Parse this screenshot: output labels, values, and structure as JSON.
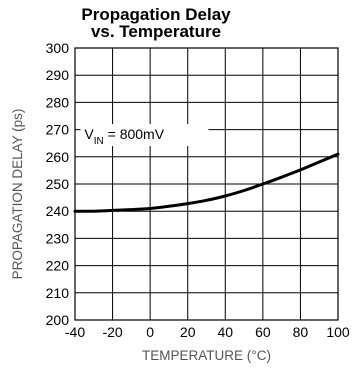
{
  "chart_data": {
    "type": "line",
    "title": "Propagation Delay",
    "subtitle": "vs. Temperature",
    "xlabel": "TEMPERATURE (°C)",
    "ylabel": "PROPAGATION DELAY (ps)",
    "xlim": [
      -40,
      100
    ],
    "ylim": [
      200,
      300
    ],
    "x_ticks": [
      "-40",
      "-20",
      "0",
      "20",
      "40",
      "60",
      "80",
      "100"
    ],
    "y_ticks": [
      "200",
      "210",
      "220",
      "230",
      "240",
      "250",
      "260",
      "270",
      "280",
      "290",
      "300"
    ],
    "grid": true,
    "annotation": {
      "prefix": "V",
      "sub": "IN",
      "suffix": " = 800mV"
    },
    "series": [
      {
        "x": [
          -40,
          -30,
          -20,
          -10,
          0,
          10,
          20,
          30,
          40,
          50,
          60,
          70,
          80,
          90,
          100
        ],
        "values": [
          240,
          240,
          240.3,
          240.6,
          241,
          241.8,
          242.8,
          244,
          245.6,
          247.6,
          250,
          252.5,
          255.2,
          258.1,
          261
        ]
      }
    ]
  }
}
